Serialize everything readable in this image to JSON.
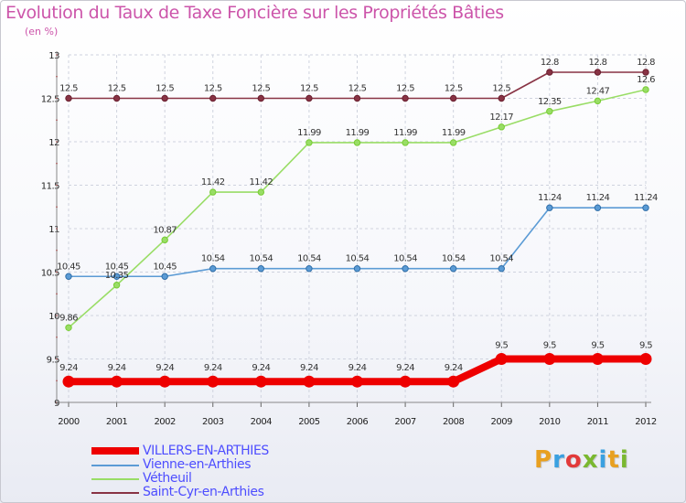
{
  "title": "Evolution du Taux de Taxe Foncière sur les Propriétés Bâties",
  "unit_label": "(en %)",
  "logo": {
    "text": "Proxiti",
    "colors": [
      "#e8a020",
      "#3aa0e0",
      "#e23a3a",
      "#7ab830",
      "#3aa0e0",
      "#e8a020",
      "#7ab830"
    ]
  },
  "chart_data": {
    "type": "line",
    "title": "Evolution du Taux de Taxe Foncière sur les Propriétés Bâties",
    "ylabel": "(en %)",
    "xlabel": "",
    "ylim": [
      9,
      13
    ],
    "y_ticks": [
      "9",
      "9.5",
      "10",
      "10.5",
      "11",
      "11.5",
      "12",
      "12.5",
      "13"
    ],
    "x": [
      "2000",
      "2001",
      "2002",
      "2003",
      "2004",
      "2005",
      "2006",
      "2007",
      "2008",
      "2009",
      "2010",
      "2011",
      "2012"
    ],
    "grid": true,
    "legend_position": "bottom-left",
    "series": [
      {
        "name": "VILLERS-EN-ARTHIES",
        "color": "#ee0000",
        "emphasis": true,
        "values": [
          9.24,
          9.24,
          9.24,
          9.24,
          9.24,
          9.24,
          9.24,
          9.24,
          9.24,
          9.5,
          9.5,
          9.5,
          9.5
        ],
        "labels": [
          "9.24",
          "9.24",
          "9.24",
          "9.24",
          "9.24",
          "9.24",
          "9.24",
          "9.24",
          "9.24",
          "9.5",
          "9.5",
          "9.5",
          "9.5"
        ]
      },
      {
        "name": "Vienne-en-Arthies",
        "color": "#5b9bd5",
        "marker": "#2f6ea8",
        "values": [
          10.45,
          10.45,
          10.45,
          10.54,
          10.54,
          10.54,
          10.54,
          10.54,
          10.54,
          10.54,
          11.24,
          11.24,
          11.24
        ],
        "labels": [
          "10.45",
          "10.45",
          "10.45",
          "10.54",
          "10.54",
          "10.54",
          "10.54",
          "10.54",
          "10.54",
          "10.54",
          "11.24",
          "11.24",
          "11.24"
        ]
      },
      {
        "name": "Vétheuil",
        "color": "#99dd66",
        "marker": "#77cc33",
        "values": [
          9.86,
          10.35,
          10.87,
          11.42,
          11.42,
          11.99,
          11.99,
          11.99,
          11.99,
          12.17,
          12.35,
          12.47,
          12.6
        ],
        "labels": [
          "9.86",
          "10.35",
          "10.87",
          "11.42",
          "11.42",
          "11.99",
          "11.99",
          "11.99",
          "11.99",
          "12.17",
          "12.35",
          "12.47",
          "12.6"
        ]
      },
      {
        "name": "Saint-Cyr-en-Arthies",
        "color": "#883344",
        "marker": "#6a2030",
        "values": [
          12.5,
          12.5,
          12.5,
          12.5,
          12.5,
          12.5,
          12.5,
          12.5,
          12.5,
          12.5,
          12.8,
          12.8,
          12.8
        ],
        "labels": [
          "12.5",
          "12.5",
          "12.5",
          "12.5",
          "12.5",
          "12.5",
          "12.5",
          "12.5",
          "12.5",
          "12.5",
          "12.8",
          "12.8",
          "12.8"
        ]
      }
    ]
  }
}
